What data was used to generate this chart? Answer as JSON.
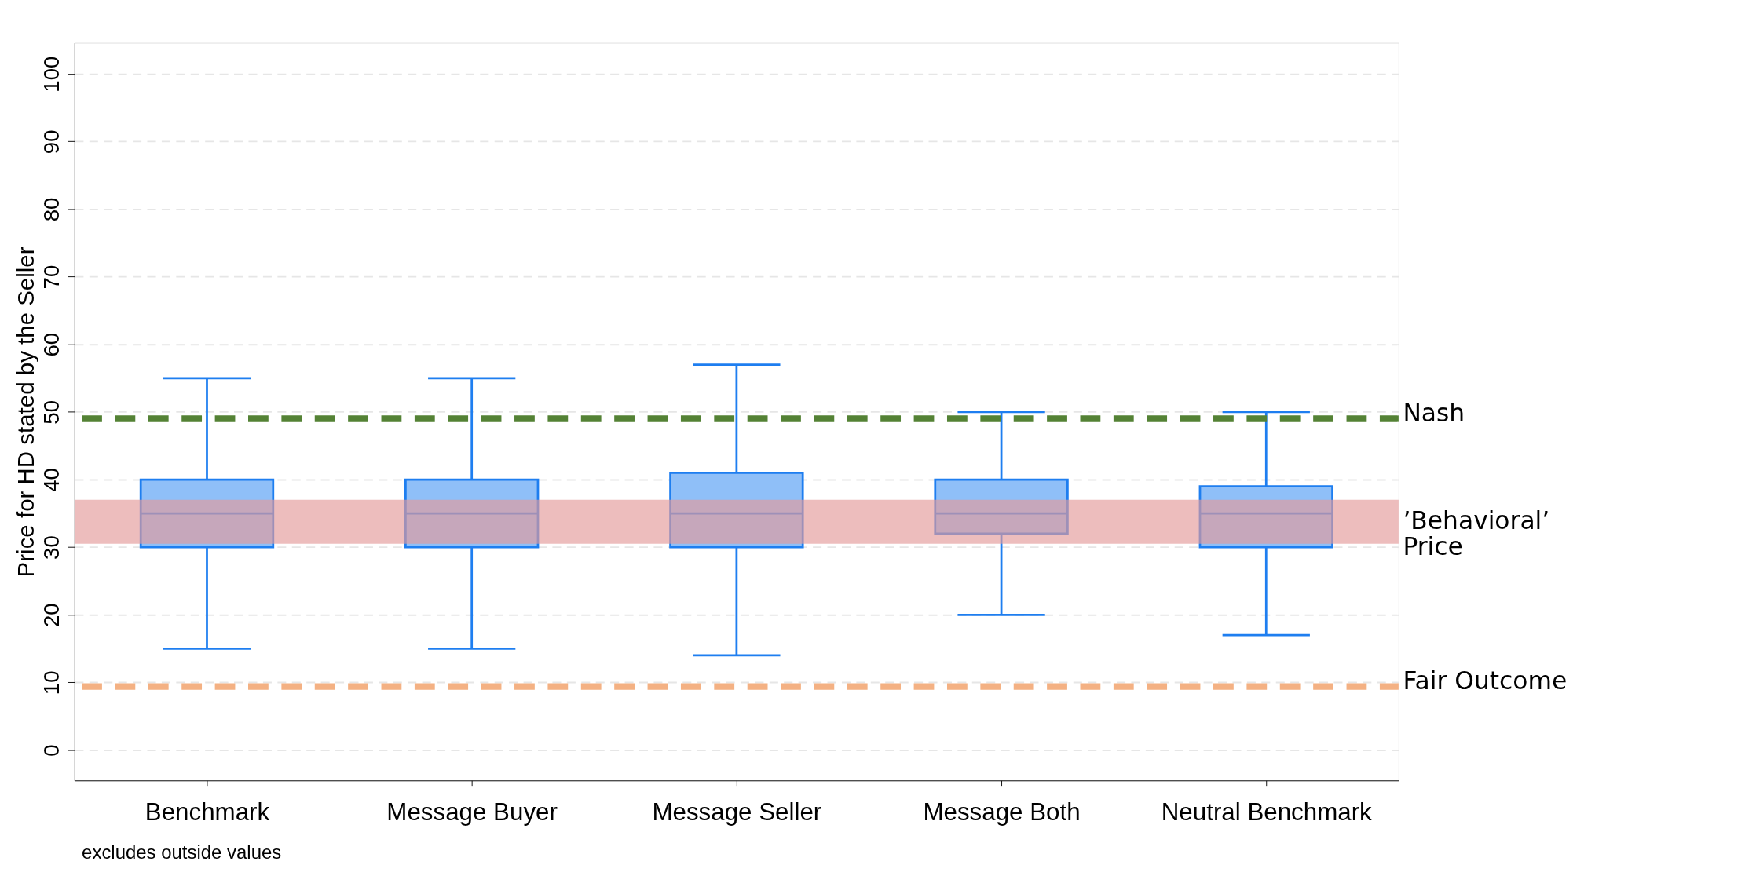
{
  "chart_data": {
    "type": "box",
    "ylabel": "Price for HD stated by the Seller",
    "categories": [
      "Benchmark",
      "Message Buyer",
      "Message Seller",
      "Message Both",
      "Neutral Benchmark"
    ],
    "series": [
      {
        "color": "#1e7ef0",
        "boxes": [
          {
            "low": 15,
            "q1": 30,
            "median": 35,
            "q3": 40,
            "high": 55
          },
          {
            "low": 15,
            "q1": 30,
            "median": 35,
            "q3": 40,
            "high": 55
          },
          {
            "low": 14,
            "q1": 30,
            "median": 35,
            "q3": 41,
            "high": 57
          },
          {
            "low": 20,
            "q1": 32,
            "median": 35,
            "q3": 40,
            "high": 50
          },
          {
            "low": 17,
            "q1": 30,
            "median": 35,
            "q3": 39,
            "high": 50
          }
        ]
      }
    ],
    "ylim": [
      -4.5,
      104.6
    ],
    "yticks": [
      0,
      10,
      20,
      30,
      40,
      50,
      60,
      70,
      80,
      90,
      100
    ],
    "grid": "y",
    "ref_lines": [
      {
        "axis": "y",
        "value": 49,
        "label": "Nash",
        "color": "#548235",
        "line_style": "dashed"
      },
      {
        "axis": "y",
        "value": 9.4,
        "label": "Fair  Outcome",
        "color": "#f4b183",
        "line_style": "dashed"
      }
    ],
    "bands": [
      {
        "axis": "y",
        "from": 30.5,
        "to": 37,
        "label": "’Behavioral’\n Price",
        "color": "#e39a9a"
      }
    ],
    "annotations": [
      "excludes outside values"
    ]
  }
}
